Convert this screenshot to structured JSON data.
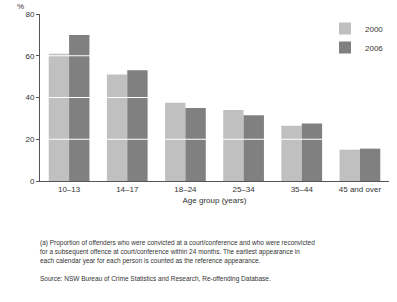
{
  "chart_data": {
    "type": "bar",
    "ylabel": "%",
    "xlabel": "Age group (years)",
    "categories": [
      "10–13",
      "14–17",
      "18–24",
      "25–34",
      "35–44",
      "45 and over"
    ],
    "series": [
      {
        "name": "2000",
        "color": "#c0c0c0",
        "values": [
          61,
          51,
          37.5,
          34,
          26.5,
          15
        ]
      },
      {
        "name": "2006",
        "color": "#808080",
        "values": [
          70,
          53,
          35,
          31.5,
          27.5,
          15.5
        ]
      }
    ],
    "ylim": [
      0,
      80
    ],
    "yticks": [
      0,
      20,
      40,
      60,
      80
    ],
    "grid": true,
    "legend": "top right",
    "annotations": [
      "(a) Proportion of offenders who were convicted at a court/conference and who were reconvicted",
      "for a subsequent offence at court/conference within 24 months. The earliest appearance in",
      "each calendar year for each person is counted as the reference appearance.",
      "Source: NSW Bureau of Crime Statistics and Research, Re-offending Database."
    ]
  }
}
